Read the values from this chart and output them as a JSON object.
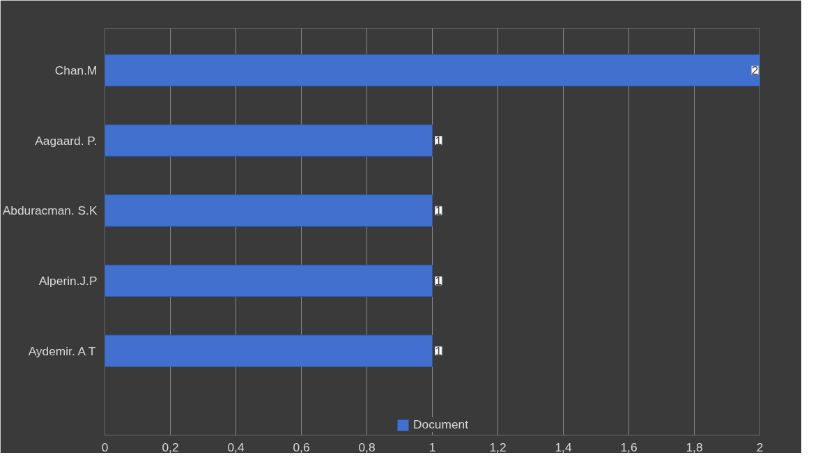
{
  "chart_data": {
    "type": "bar",
    "orientation": "horizontal",
    "categories": [
      "Chan.M",
      "Aagaard. P.",
      "Abduracman. S.K",
      "Alperin.J.P",
      "Aydemir. A T"
    ],
    "series": [
      {
        "name": "Document",
        "color": "#4170cf",
        "values": [
          2,
          1,
          1,
          1,
          1
        ]
      }
    ],
    "xlim": [
      0,
      2
    ],
    "xticks": [
      0,
      {
        "value": 0.2,
        "label": "0,2"
      },
      {
        "value": 0.4,
        "label": "0,4"
      },
      {
        "value": 0.6,
        "label": "0,6"
      },
      {
        "value": 0.8,
        "label": "0,8"
      },
      1,
      {
        "value": 1.2,
        "label": "1,2"
      },
      {
        "value": 1.4,
        "label": "1,4"
      },
      {
        "value": 1.6,
        "label": "1,6"
      },
      {
        "value": 1.8,
        "label": "1,8"
      },
      2
    ],
    "grid": "x",
    "legend": "bottom",
    "data_labels": true
  }
}
